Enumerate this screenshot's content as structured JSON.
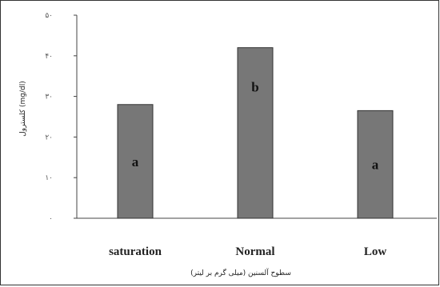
{
  "chart_data": {
    "type": "bar",
    "categories": [
      "saturation",
      "Normal",
      "Low"
    ],
    "values": [
      28,
      42,
      26.5
    ],
    "bar_labels": [
      "a",
      "b",
      "a"
    ],
    "xlabel": "سطوح آلسنین (میلی گرم بر لیتر)",
    "ylabel": "کلسترول (mg/dl)",
    "ylim": [
      0,
      50
    ],
    "yticks": [
      0,
      10,
      20,
      30,
      40,
      50
    ],
    "ytick_labels": [
      "۰",
      "۱۰",
      "۲۰",
      "۳۰",
      "۴۰",
      "۵۰"
    ],
    "grid": false,
    "legend": "none",
    "bar_color": "#777777",
    "bar_edge_color": "#333333"
  }
}
